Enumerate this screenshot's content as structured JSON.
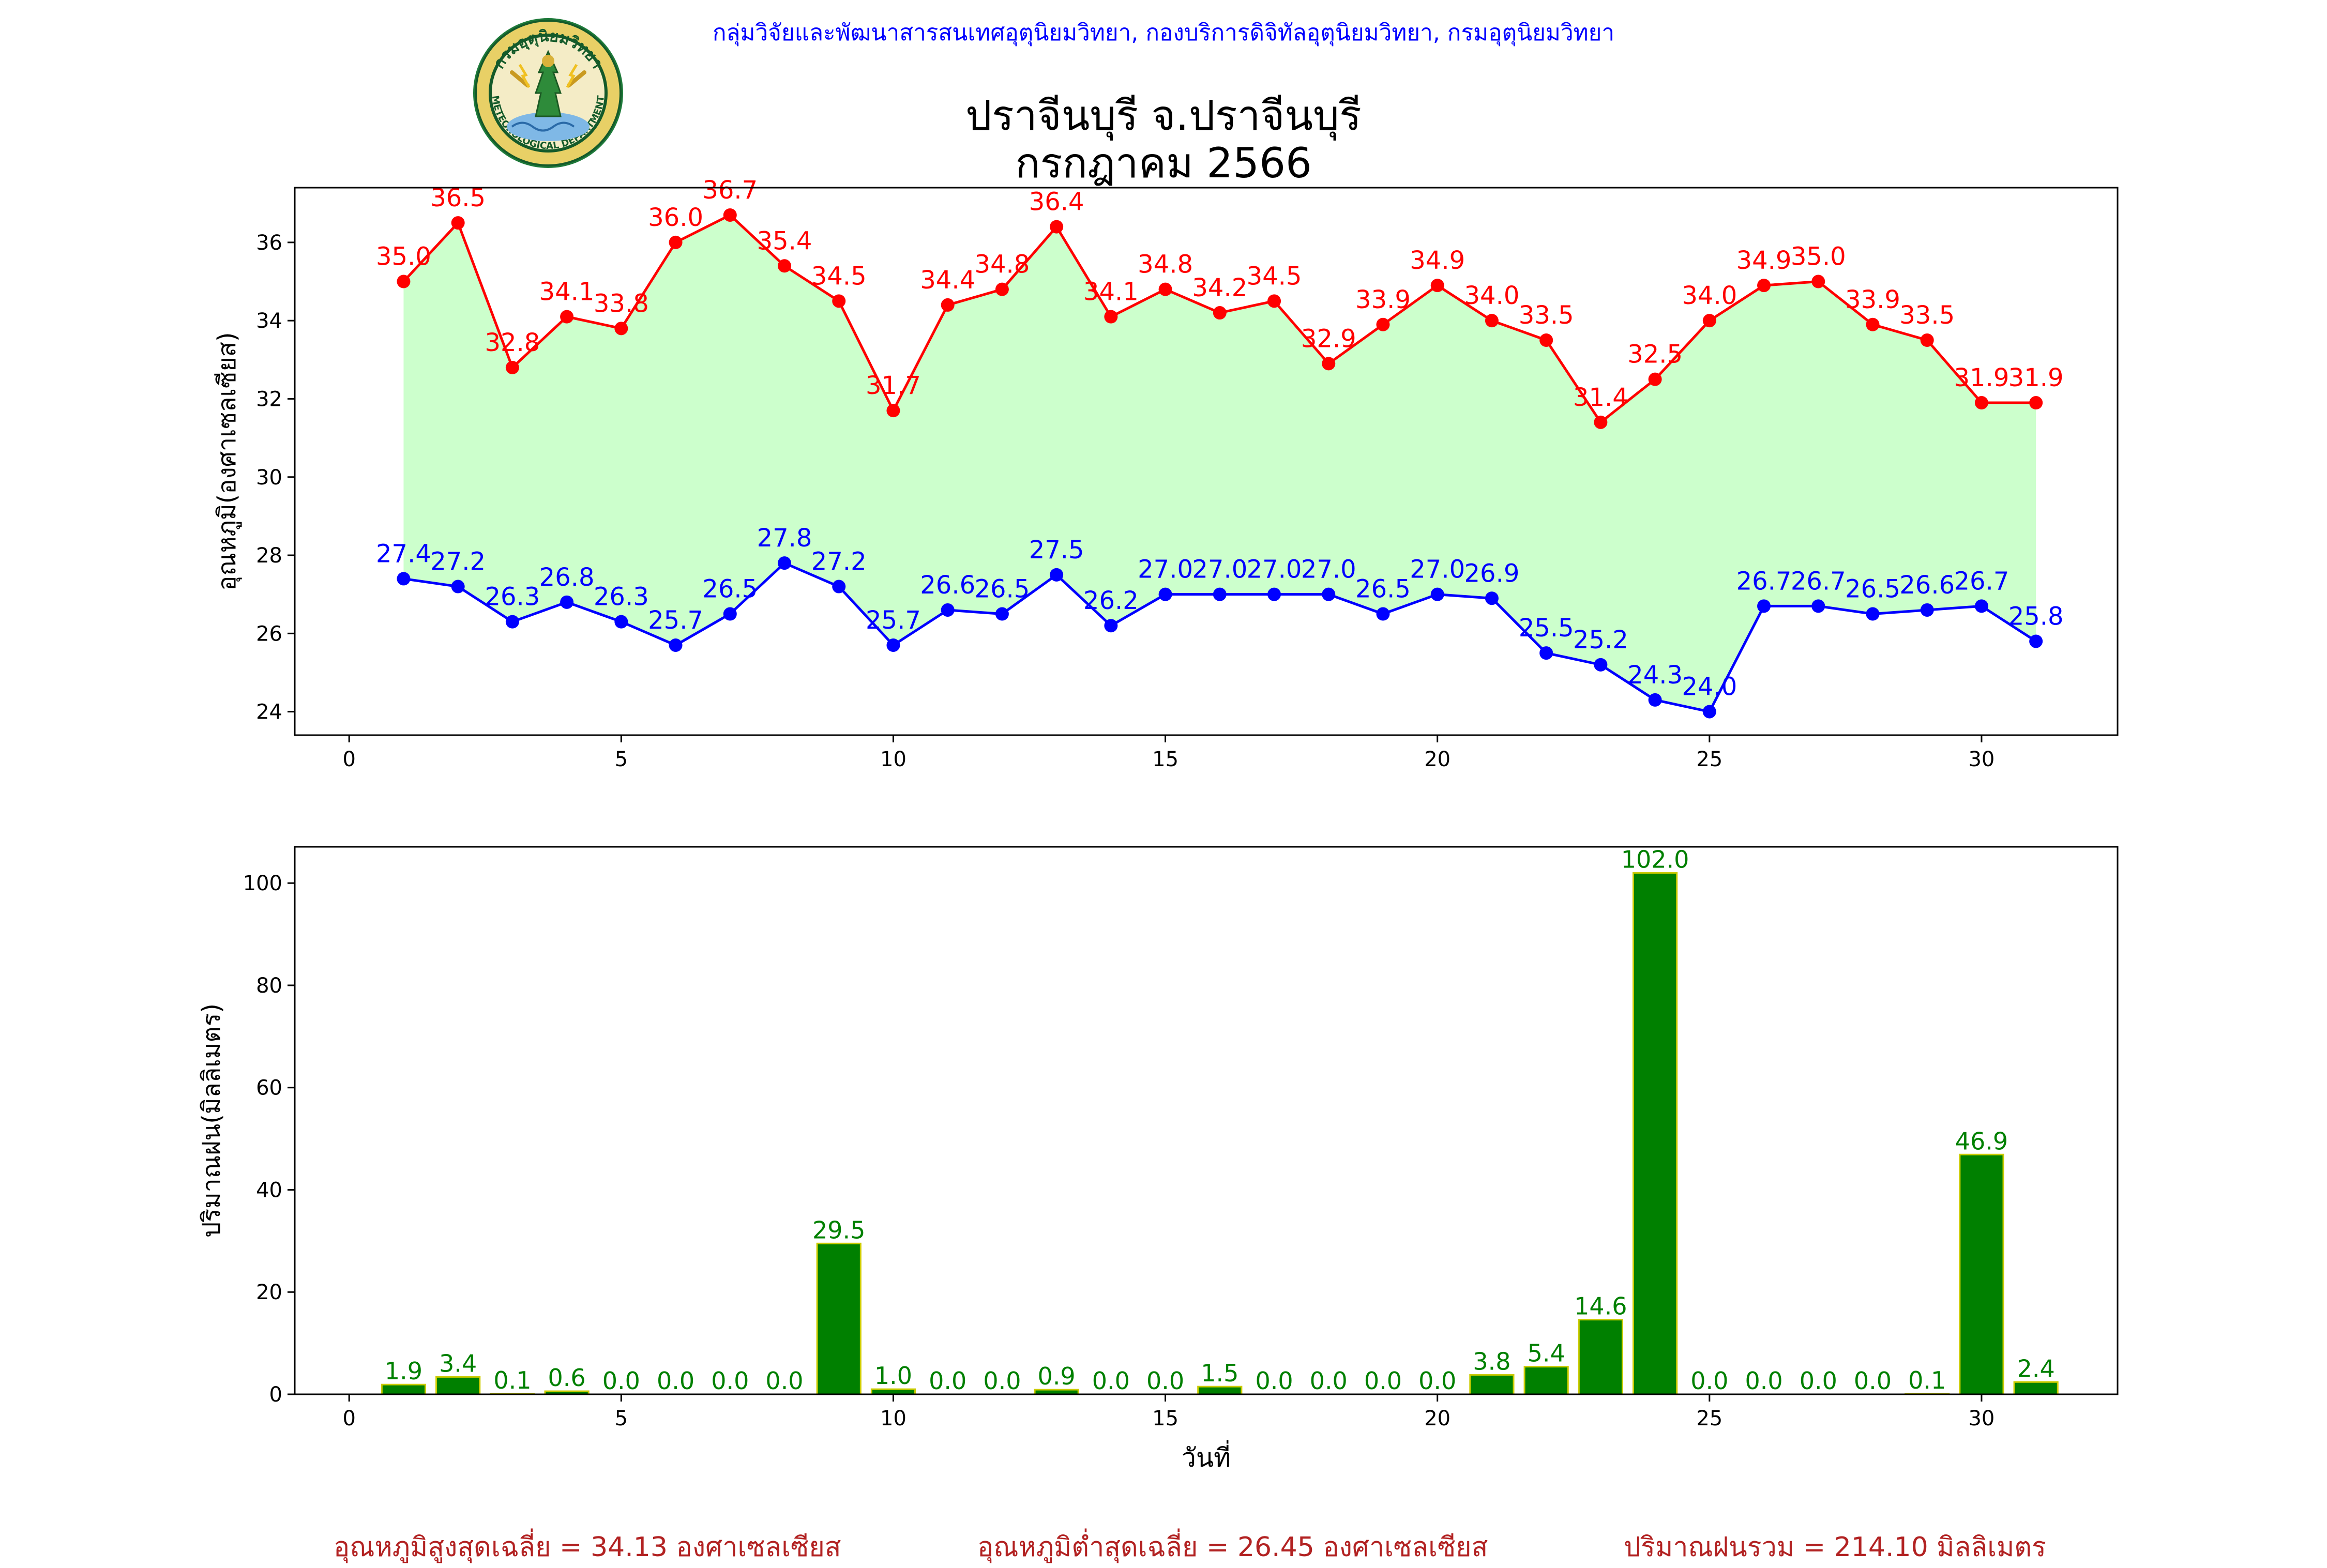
{
  "header": {
    "credit": "กลุ่มวิจัยและพัฒนาสารสนเทศอุตุนิยมวิทยา, กองบริการดิจิทัลอุตุนิยมวิทยา, กรมอุตุนิยมวิทยา",
    "title_line1": "ปราจีนบุรี จ.ปราจีนบุรี",
    "title_line2": "กรกฎาคม 2566",
    "logo": {
      "top_text": "กรมอุตุนิยมวิทยา",
      "bottom_text": "METEOROLOGICAL DEPARTMENT"
    }
  },
  "colors": {
    "max_temp": "#ff0000",
    "min_temp": "#0000ff",
    "fill": "#ccffcc",
    "rain_bar": "#008000",
    "rain_edge": "#cccc00",
    "rain_label": "#008000",
    "footer_text": "#b22222",
    "header_text": "#0000ff"
  },
  "chart_data": [
    {
      "type": "line",
      "title": "",
      "xlabel": "",
      "ylabel": "อุณหภูมิ(องศาเซลเซียส)",
      "xlim": [
        -1,
        32.5
      ],
      "ylim": [
        23.4,
        37.4
      ],
      "xticks": [
        0,
        5,
        10,
        15,
        20,
        25,
        30
      ],
      "yticks": [
        24,
        26,
        28,
        30,
        32,
        34,
        36
      ],
      "grid": false,
      "x": [
        1,
        2,
        3,
        4,
        5,
        6,
        7,
        8,
        9,
        10,
        11,
        12,
        13,
        14,
        15,
        16,
        17,
        18,
        19,
        20,
        21,
        22,
        23,
        24,
        25,
        26,
        27,
        28,
        29,
        30,
        31
      ],
      "series": [
        {
          "name": "max",
          "color": "#ff0000",
          "values": [
            35.0,
            36.5,
            32.8,
            34.1,
            33.8,
            36.0,
            36.7,
            35.4,
            34.5,
            31.7,
            34.4,
            34.8,
            36.4,
            34.1,
            34.8,
            34.2,
            34.5,
            32.9,
            33.9,
            34.9,
            34.0,
            33.5,
            31.4,
            32.5,
            34.0,
            34.9,
            35.0,
            33.9,
            33.5,
            31.9,
            31.9
          ],
          "labels": [
            "35.0",
            "36.5",
            "32.8",
            "34.1",
            "33.8",
            "36.0",
            "36.7",
            "35.4",
            "34.5",
            "31.7",
            "34.4",
            "34.8",
            "36.4",
            "34.1",
            "34.8",
            "34.2",
            "34.5",
            "32.9",
            "33.9",
            "34.9",
            "34.0",
            "33.5",
            "31.4",
            "32.5",
            "34.0",
            "34.9",
            "35.0",
            "33.9",
            "33.5",
            "31.9",
            "31.9"
          ]
        },
        {
          "name": "min",
          "color": "#0000ff",
          "values": [
            27.4,
            27.2,
            26.3,
            26.8,
            26.3,
            25.7,
            26.5,
            27.8,
            27.2,
            25.7,
            26.6,
            26.5,
            27.5,
            26.2,
            27.0,
            27.0,
            27.0,
            27.0,
            26.5,
            27.0,
            26.9,
            25.5,
            25.2,
            24.3,
            24.0,
            26.7,
            26.7,
            26.5,
            26.6,
            26.7,
            25.8
          ],
          "labels": [
            "27.4",
            "27.2",
            "26.3",
            "26.8",
            "26.3",
            "25.7",
            "26.5",
            "27.8",
            "27.2",
            "25.7",
            "26.6",
            "26.5",
            "27.5",
            "26.2",
            "27.0",
            "27.0",
            "27.0",
            "27.0",
            "26.5",
            "27.0",
            "26.9",
            "25.5",
            "25.2",
            "24.3",
            "24.0",
            "26.7",
            "26.7",
            "26.5",
            "26.6",
            "26.7",
            "25.8"
          ]
        }
      ]
    },
    {
      "type": "bar",
      "title": "",
      "xlabel": "วันที่",
      "ylabel": "ปริมาณฝน(มิลลิเมตร)",
      "xlim": [
        -1,
        32.5
      ],
      "ylim": [
        0,
        107.1
      ],
      "xticks": [
        0,
        5,
        10,
        15,
        20,
        25,
        30
      ],
      "yticks": [
        0,
        20,
        40,
        60,
        80,
        100
      ],
      "grid": false,
      "x": [
        1,
        2,
        3,
        4,
        5,
        6,
        7,
        8,
        9,
        10,
        11,
        12,
        13,
        14,
        15,
        16,
        17,
        18,
        19,
        20,
        21,
        22,
        23,
        24,
        25,
        26,
        27,
        28,
        29,
        30,
        31
      ],
      "values": [
        1.9,
        3.4,
        0.1,
        0.6,
        0.0,
        0.0,
        0.0,
        0.0,
        29.5,
        1.0,
        0.0,
        0.0,
        0.9,
        0.0,
        0.0,
        1.5,
        0.0,
        0.0,
        0.0,
        0.0,
        3.8,
        5.4,
        14.6,
        102.0,
        0.0,
        0.0,
        0.0,
        0.0,
        0.1,
        46.9,
        2.4
      ],
      "labels": [
        "1.9",
        "3.4",
        "0.1",
        "0.6",
        "0.0",
        "0.0",
        "0.0",
        "0.0",
        "29.5",
        "1.0",
        "0.0",
        "0.0",
        "0.9",
        "0.0",
        "0.0",
        "1.5",
        "0.0",
        "0.0",
        "0.0",
        "0.0",
        "3.8",
        "5.4",
        "14.6",
        "102.0",
        "0.0",
        "0.0",
        "0.0",
        "0.0",
        "0.1",
        "46.9",
        "2.4"
      ]
    }
  ],
  "footer": {
    "avg_max": "อุณหภูมิสูงสุดเฉลี่ย = 34.13 องศาเซลเซียส",
    "avg_min": "อุณหภูมิต่ำสุดเฉลี่ย = 26.45 องศาเซลเซียส",
    "total_rain": "ปริมาณฝนรวม = 214.10 มิลลิเมตร"
  }
}
